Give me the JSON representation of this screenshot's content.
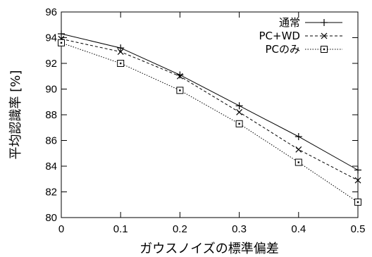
{
  "chart_data": {
    "type": "line",
    "xlabel": "ガウスノイズの標準偏差",
    "ylabel": "平均認識率 [%]",
    "xlim": [
      0,
      0.5
    ],
    "ylim": [
      80,
      96
    ],
    "x_ticks": [
      "0",
      "0.1",
      "0.2",
      "0.3",
      "0.4",
      "0.5"
    ],
    "y_ticks": [
      "80",
      "82",
      "84",
      "86",
      "88",
      "90",
      "92",
      "94",
      "96"
    ],
    "grid": false,
    "legend_position": "top-right",
    "x": [
      0,
      0.1,
      0.2,
      0.3,
      0.4,
      0.5
    ],
    "series": [
      {
        "name": "通常",
        "marker": "plus",
        "line_style": "solid",
        "values": [
          94.3,
          93.2,
          91.1,
          88.7,
          86.3,
          83.7
        ]
      },
      {
        "name": "PC+WD",
        "marker": "cross",
        "line_style": "dashed",
        "values": [
          93.9,
          92.9,
          91.0,
          88.2,
          85.3,
          82.9
        ]
      },
      {
        "name": "PCのみ",
        "marker": "square",
        "line_style": "dotted",
        "values": [
          93.6,
          92.0,
          89.9,
          87.3,
          84.3,
          81.2
        ]
      }
    ],
    "color": "#000000"
  }
}
